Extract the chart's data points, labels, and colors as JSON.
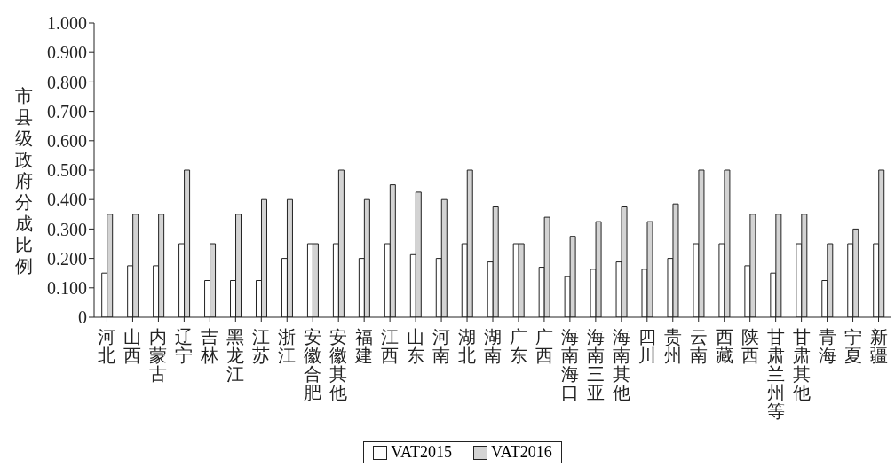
{
  "chart_data": {
    "type": "bar",
    "ylabel": "市县级政府分成比例",
    "categories": [
      "河北",
      "山西",
      "内蒙古",
      "辽宁",
      "吉林",
      "黑龙江",
      "江苏",
      "浙江",
      "安徽合肥",
      "安徽其他",
      "福建",
      "江西",
      "山东",
      "河南",
      "湖北",
      "湖南",
      "广东",
      "广西",
      "海南海口",
      "海南三亚",
      "海南其他",
      "四川",
      "贵州",
      "云南",
      "西藏",
      "陕西",
      "甘肃兰州等",
      "甘肃其他",
      "青海",
      "宁夏",
      "新疆"
    ],
    "series": [
      {
        "name": "VAT2015",
        "color": "#ffffff",
        "values": [
          0.15,
          0.175,
          0.175,
          0.25,
          0.125,
          0.125,
          0.125,
          0.2,
          0.25,
          0.25,
          0.2,
          0.25,
          0.213,
          0.2,
          0.25,
          0.188,
          0.25,
          0.17,
          0.138,
          0.163,
          0.188,
          0.163,
          0.2,
          0.25,
          0.25,
          0.175,
          0.15,
          0.25,
          0.125,
          0.25,
          0.25
        ]
      },
      {
        "name": "VAT2016",
        "color": "#d3d3d3",
        "values": [
          0.35,
          0.35,
          0.35,
          0.5,
          0.25,
          0.35,
          0.4,
          0.4,
          0.25,
          0.5,
          0.4,
          0.45,
          0.425,
          0.4,
          0.5,
          0.375,
          0.25,
          0.34,
          0.275,
          0.325,
          0.375,
          0.325,
          0.385,
          0.5,
          0.5,
          0.35,
          0.35,
          0.35,
          0.25,
          0.3,
          0.5
        ]
      }
    ],
    "ylim": [
      0,
      1
    ],
    "yticks": [
      0,
      {
        "value": 0.1,
        "label": "0.100"
      },
      {
        "value": 0.2,
        "label": "0.200"
      },
      {
        "value": 0.3,
        "label": "0.300"
      },
      {
        "value": 0.4,
        "label": "0.400"
      },
      {
        "value": 0.5,
        "label": "0.500"
      },
      {
        "value": 0.6,
        "label": "0.600"
      },
      {
        "value": 0.7,
        "label": "0.700"
      },
      {
        "value": 0.8,
        "label": "0.800"
      },
      {
        "value": 0.9,
        "label": "0.900"
      },
      {
        "value": 1,
        "label": "1.000"
      }
    ],
    "grid": false,
    "legend": "bottom"
  }
}
